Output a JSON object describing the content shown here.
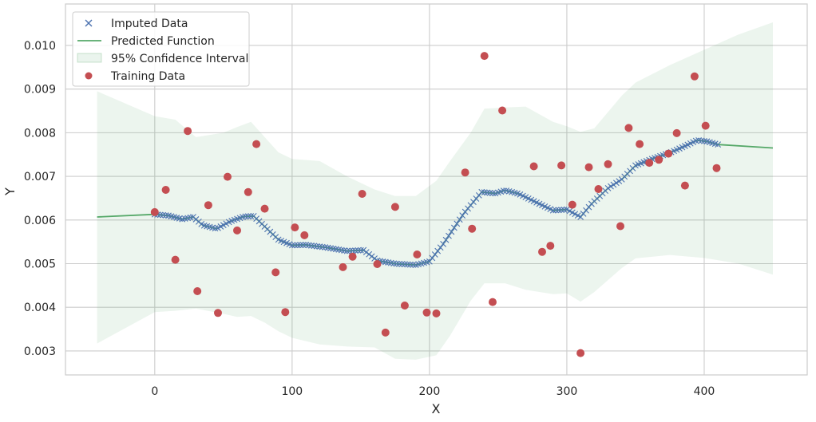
{
  "chart_data": {
    "type": "scatter",
    "title": "",
    "xlabel": "X",
    "ylabel": "Y",
    "xlim": [
      -65,
      475
    ],
    "ylim": [
      0.00245,
      0.01095
    ],
    "xticks": [
      0,
      100,
      200,
      300,
      400
    ],
    "yticks": [
      0.003,
      0.004,
      0.005,
      0.006,
      0.007,
      0.008,
      0.009,
      0.01
    ],
    "xtick_labels": [
      "0",
      "100",
      "200",
      "300",
      "400"
    ],
    "ytick_labels": [
      "0.003",
      "0.004",
      "0.005",
      "0.006",
      "0.007",
      "0.008",
      "0.009",
      "0.010"
    ],
    "grid": true,
    "legend_position": "top-left",
    "legend": [
      {
        "label": "Imputed Data",
        "marker": "x",
        "color": "#4c72b0"
      },
      {
        "label": "Predicted Function",
        "marker": "line",
        "color": "#55a868"
      },
      {
        "label": "95% Confidence Interval",
        "marker": "patch",
        "color": "#55a868"
      },
      {
        "label": "Training Data",
        "marker": "o",
        "color": "#c44e52"
      }
    ],
    "predicted_function": {
      "name": "Predicted Function",
      "color": "#55a868",
      "points": [
        [
          -42,
          0.00607
        ],
        [
          0,
          0.00613
        ],
        [
          10,
          0.0061
        ],
        [
          20,
          0.00602
        ],
        [
          28,
          0.00607
        ],
        [
          35,
          0.00588
        ],
        [
          45,
          0.0058
        ],
        [
          55,
          0.00597
        ],
        [
          65,
          0.00608
        ],
        [
          72,
          0.00609
        ],
        [
          80,
          0.00585
        ],
        [
          90,
          0.00555
        ],
        [
          100,
          0.00542
        ],
        [
          110,
          0.00543
        ],
        [
          125,
          0.00537
        ],
        [
          140,
          0.00529
        ],
        [
          152,
          0.00531
        ],
        [
          162,
          0.00507
        ],
        [
          175,
          0.005
        ],
        [
          190,
          0.00497
        ],
        [
          200,
          0.00505
        ],
        [
          210,
          0.00545
        ],
        [
          225,
          0.00615
        ],
        [
          238,
          0.00664
        ],
        [
          248,
          0.00661
        ],
        [
          255,
          0.00668
        ],
        [
          265,
          0.0066
        ],
        [
          280,
          0.00637
        ],
        [
          290,
          0.00622
        ],
        [
          300,
          0.00624
        ],
        [
          310,
          0.00607
        ],
        [
          318,
          0.00637
        ],
        [
          330,
          0.00673
        ],
        [
          340,
          0.00693
        ],
        [
          350,
          0.00725
        ],
        [
          362,
          0.0074
        ],
        [
          375,
          0.00754
        ],
        [
          385,
          0.00768
        ],
        [
          395,
          0.00783
        ],
        [
          402,
          0.0078
        ],
        [
          410,
          0.00773
        ],
        [
          450,
          0.00765
        ]
      ]
    },
    "confidence_interval": {
      "name": "95% Confidence Interval",
      "color": "#55a868",
      "x": [
        -42,
        0,
        15,
        30,
        50,
        60,
        70,
        80,
        90,
        100,
        120,
        140,
        160,
        175,
        190,
        205,
        215,
        230,
        240,
        255,
        270,
        290,
        300,
        310,
        320,
        340,
        350,
        375,
        400,
        425,
        450
      ],
      "upper": [
        0.00895,
        0.00838,
        0.0083,
        0.0079,
        0.008,
        0.00813,
        0.00825,
        0.0079,
        0.00755,
        0.0074,
        0.00735,
        0.007,
        0.0067,
        0.00655,
        0.00655,
        0.0069,
        0.00735,
        0.008,
        0.00855,
        0.00858,
        0.0086,
        0.00825,
        0.00815,
        0.00802,
        0.0081,
        0.00885,
        0.00915,
        0.00955,
        0.0099,
        0.01025,
        0.01053
      ],
      "lower": [
        0.00317,
        0.00389,
        0.00392,
        0.00397,
        0.00385,
        0.00378,
        0.0038,
        0.00365,
        0.00345,
        0.0033,
        0.00315,
        0.0031,
        0.00308,
        0.00282,
        0.0028,
        0.0029,
        0.00335,
        0.00415,
        0.00455,
        0.00455,
        0.0044,
        0.0043,
        0.00432,
        0.00413,
        0.00435,
        0.0049,
        0.00512,
        0.0052,
        0.00513,
        0.005,
        0.00475
      ]
    },
    "imputed_data": {
      "name": "Imputed Data",
      "color": "#4c72b0",
      "x_start": 0,
      "x_end": 410,
      "x_step": 2
    },
    "training_data": {
      "name": "Training Data",
      "color": "#c44e52",
      "points": [
        [
          0,
          0.00618
        ],
        [
          8,
          0.00669
        ],
        [
          15,
          0.00509
        ],
        [
          24,
          0.00804
        ],
        [
          31,
          0.00437
        ],
        [
          39,
          0.00634
        ],
        [
          46,
          0.00387
        ],
        [
          53,
          0.00699
        ],
        [
          60,
          0.00576
        ],
        [
          68,
          0.00664
        ],
        [
          74,
          0.00774
        ],
        [
          80,
          0.00626
        ],
        [
          88,
          0.0048
        ],
        [
          95,
          0.00389
        ],
        [
          102,
          0.00583
        ],
        [
          109,
          0.00565
        ],
        [
          137,
          0.00492
        ],
        [
          144,
          0.00516
        ],
        [
          151,
          0.0066
        ],
        [
          162,
          0.00499
        ],
        [
          168,
          0.00342
        ],
        [
          175,
          0.0063
        ],
        [
          182,
          0.00404
        ],
        [
          191,
          0.00521
        ],
        [
          198,
          0.00388
        ],
        [
          205,
          0.00386
        ],
        [
          226,
          0.00709
        ],
        [
          231,
          0.0058
        ],
        [
          240,
          0.00976
        ],
        [
          246,
          0.00412
        ],
        [
          253,
          0.00851
        ],
        [
          276,
          0.00723
        ],
        [
          282,
          0.00527
        ],
        [
          288,
          0.00541
        ],
        [
          296,
          0.00725
        ],
        [
          304,
          0.00635
        ],
        [
          310,
          0.00295
        ],
        [
          316,
          0.00721
        ],
        [
          323,
          0.00671
        ],
        [
          330,
          0.00728
        ],
        [
          339,
          0.00586
        ],
        [
          345,
          0.00811
        ],
        [
          353,
          0.00774
        ],
        [
          360,
          0.00731
        ],
        [
          367,
          0.00738
        ],
        [
          374,
          0.00752
        ],
        [
          380,
          0.00799
        ],
        [
          386,
          0.00679
        ],
        [
          393,
          0.00929
        ],
        [
          401,
          0.00816
        ],
        [
          409,
          0.00719
        ]
      ]
    }
  }
}
